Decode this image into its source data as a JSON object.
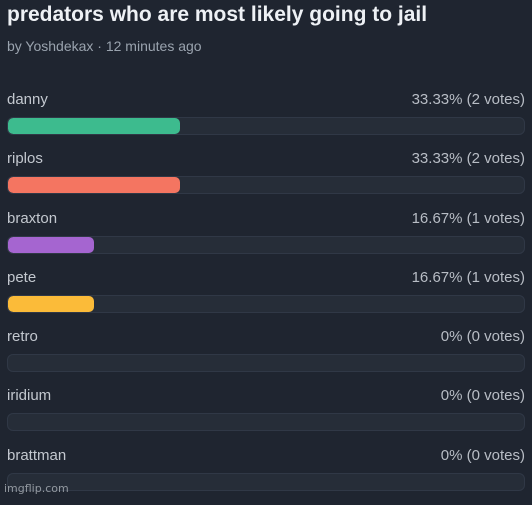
{
  "poll": {
    "title": "predators who are most likely going to jail",
    "meta": "by Yoshdekax · 12 minutes ago",
    "options": [
      {
        "label": "danny",
        "result": "33.33% (2 votes)",
        "percent": 33.33,
        "color": "#3dbb8e"
      },
      {
        "label": "riplos",
        "result": "33.33% (2 votes)",
        "percent": 33.33,
        "color": "#f47561"
      },
      {
        "label": "braxton",
        "result": "16.67% (1 votes)",
        "percent": 16.67,
        "color": "#a565d0"
      },
      {
        "label": "pete",
        "result": "16.67% (1 votes)",
        "percent": 16.67,
        "color": "#fbbb39"
      },
      {
        "label": "retro",
        "result": "0% (0 votes)",
        "percent": 0,
        "color": "#3dbb8e"
      },
      {
        "label": "iridium",
        "result": "0% (0 votes)",
        "percent": 0,
        "color": "#3dbb8e"
      },
      {
        "label": "brattman",
        "result": "0% (0 votes)",
        "percent": 0,
        "color": "#3dbb8e"
      }
    ]
  },
  "watermark": "imgflip.com"
}
